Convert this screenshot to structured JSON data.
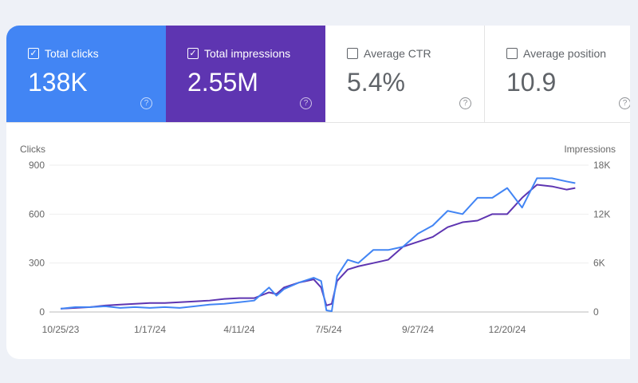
{
  "metrics": [
    {
      "label": "Total clicks",
      "value": "138K",
      "checked": true,
      "color": "#4285f4"
    },
    {
      "label": "Total impressions",
      "value": "2.55M",
      "checked": true,
      "color": "#5e35b1"
    },
    {
      "label": "Average CTR",
      "value": "5.4%",
      "checked": false
    },
    {
      "label": "Average position",
      "value": "10.9",
      "checked": false
    }
  ],
  "help_icon": "?",
  "check_icon": "✓",
  "chart_data": {
    "type": "line",
    "ylabel": "Clicks",
    "y2label": "Impressions",
    "ylim": [
      0,
      900
    ],
    "y2lim": [
      0,
      18000
    ],
    "yticks": [
      "0",
      "300",
      "600",
      "900"
    ],
    "y2ticks": [
      "0",
      "6K",
      "12K",
      "18K"
    ],
    "xticks": [
      "10/25/23",
      "1/17/24",
      "4/11/24",
      "7/5/24",
      "9/27/24",
      "12/20/24"
    ],
    "xtick_days": [
      0,
      84,
      168,
      252,
      336,
      420
    ],
    "x_unit": "days since 10/25/23",
    "grid": true,
    "series": [
      {
        "name": "Impressions",
        "axis": "right",
        "color": "#5e35b1",
        "x": [
          0,
          14,
          28,
          42,
          56,
          70,
          84,
          98,
          112,
          126,
          140,
          154,
          168,
          182,
          196,
          203,
          210,
          224,
          238,
          245,
          250,
          255,
          260,
          270,
          280,
          294,
          308,
          322,
          336,
          350,
          364,
          378,
          392,
          406,
          420,
          434,
          448,
          462,
          476,
          484
        ],
        "values": [
          400,
          500,
          600,
          800,
          900,
          1000,
          1100,
          1100,
          1200,
          1300,
          1400,
          1600,
          1700,
          1700,
          2400,
          2200,
          3000,
          3600,
          4000,
          3000,
          800,
          1000,
          3800,
          5200,
          5600,
          6000,
          6400,
          8000,
          8600,
          9200,
          10400,
          11000,
          11200,
          12000,
          12000,
          14000,
          15600,
          15400,
          15000,
          15200
        ]
      },
      {
        "name": "Clicks",
        "axis": "left",
        "color": "#4285f4",
        "x": [
          0,
          14,
          28,
          42,
          56,
          70,
          84,
          98,
          112,
          126,
          140,
          154,
          168,
          182,
          196,
          203,
          210,
          224,
          238,
          245,
          250,
          255,
          260,
          270,
          280,
          294,
          308,
          322,
          336,
          350,
          364,
          378,
          392,
          406,
          420,
          434,
          448,
          462,
          476,
          484
        ],
        "values": [
          20,
          30,
          30,
          35,
          25,
          30,
          25,
          30,
          25,
          35,
          45,
          50,
          60,
          70,
          150,
          100,
          140,
          180,
          210,
          190,
          10,
          5,
          220,
          320,
          300,
          380,
          380,
          400,
          480,
          530,
          620,
          600,
          700,
          700,
          760,
          640,
          820,
          820,
          800,
          790
        ]
      }
    ]
  }
}
